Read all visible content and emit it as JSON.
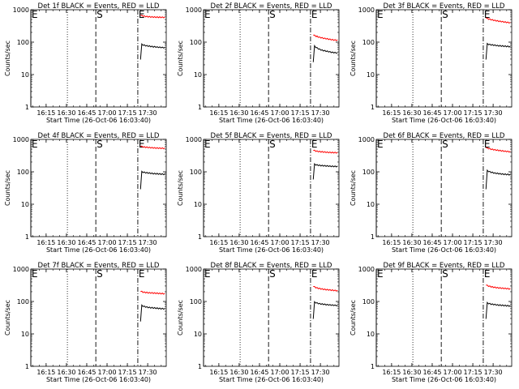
{
  "layout": {
    "rows": 3,
    "cols": 3
  },
  "colors": {
    "events": "#000000",
    "lld": "#ff0000",
    "axes": "#000000",
    "background": "#ffffff"
  },
  "chart_data": [
    {
      "type": "line",
      "title": "Det 1f BLACK = Events, RED = LLD",
      "xlabel": "Start Time (26-Oct-06 16:03:40)",
      "ylabel": "Counts/sec",
      "yscale": "log",
      "ylim": [
        1,
        1000
      ],
      "y_ticks": [
        "1",
        "10",
        "100",
        "1000"
      ],
      "xlim_minutes": [
        0,
        100
      ],
      "x_ticks": [
        {
          "label": "16:15",
          "t": 11.3
        },
        {
          "label": "16:30",
          "t": 26.3
        },
        {
          "label": "16:45",
          "t": 41.3
        },
        {
          "label": "17:00",
          "t": 56.3
        },
        {
          "label": "17:15",
          "t": 71.3
        },
        {
          "label": "17:30",
          "t": 86.3
        }
      ],
      "markers": [
        {
          "label": "E",
          "t": 0,
          "style": "solid"
        },
        {
          "label": "S",
          "t": 48,
          "style": "dash"
        },
        {
          "label": "E",
          "t": 79,
          "style": "dashdot"
        }
      ],
      "dotted_lines_t": [
        27
      ],
      "series": [
        {
          "name": "LLD",
          "color": "#ff0000",
          "t_start": 81,
          "t_end": 99,
          "values": [
            680,
            660,
            645,
            630,
            620,
            615,
            610,
            605,
            600,
            598,
            596,
            594,
            592,
            590,
            588,
            586,
            585,
            584,
            583,
            582
          ]
        },
        {
          "name": "Events",
          "color": "#000000",
          "t_start": 81,
          "t_end": 99,
          "values": [
            30,
            85,
            82,
            80,
            78,
            77,
            76,
            75,
            74,
            73,
            72,
            72,
            71,
            70,
            70,
            69,
            69,
            68,
            68,
            67
          ]
        }
      ]
    },
    {
      "type": "line",
      "title": "Det 2f BLACK = Events, RED = LLD",
      "xlabel": "Start Time (26-Oct-06 16:03:40)",
      "ylabel": "Counts/sec",
      "yscale": "log",
      "ylim": [
        1,
        1000
      ],
      "y_ticks": [
        "1",
        "10",
        "100",
        "1000"
      ],
      "xlim_minutes": [
        0,
        100
      ],
      "x_ticks": [
        {
          "label": "16:15",
          "t": 11.3
        },
        {
          "label": "16:30",
          "t": 26.3
        },
        {
          "label": "16:45",
          "t": 41.3
        },
        {
          "label": "17:00",
          "t": 56.3
        },
        {
          "label": "17:15",
          "t": 71.3
        },
        {
          "label": "17:30",
          "t": 86.3
        }
      ],
      "markers": [
        {
          "label": "E",
          "t": 0,
          "style": "solid"
        },
        {
          "label": "S",
          "t": 48,
          "style": "dash"
        },
        {
          "label": "E",
          "t": 79,
          "style": "dashdot"
        }
      ],
      "dotted_lines_t": [
        27
      ],
      "series": [
        {
          "name": "LLD",
          "color": "#ff0000",
          "t_start": 81,
          "t_end": 99,
          "values": [
            170,
            160,
            155,
            150,
            145,
            140,
            138,
            135,
            132,
            130,
            128,
            126,
            124,
            122,
            120,
            118,
            117,
            116,
            115,
            114
          ]
        },
        {
          "name": "Events",
          "color": "#000000",
          "t_start": 81,
          "t_end": 99,
          "values": [
            25,
            75,
            70,
            66,
            63,
            60,
            58,
            56,
            55,
            54,
            53,
            52,
            51,
            50,
            49,
            48,
            48,
            47,
            47,
            46
          ]
        }
      ]
    },
    {
      "type": "line",
      "title": "Det 3f BLACK = Events, RED = LLD",
      "xlabel": "Start Time (26-Oct-06 16:03:40)",
      "ylabel": "Counts/sec",
      "yscale": "log",
      "ylim": [
        1,
        1000
      ],
      "y_ticks": [
        "1",
        "10",
        "100",
        "1000"
      ],
      "xlim_minutes": [
        0,
        100
      ],
      "x_ticks": [
        {
          "label": "16:15",
          "t": 11.3
        },
        {
          "label": "16:30",
          "t": 26.3
        },
        {
          "label": "16:45",
          "t": 41.3
        },
        {
          "label": "17:00",
          "t": 56.3
        },
        {
          "label": "17:15",
          "t": 71.3
        },
        {
          "label": "17:30",
          "t": 86.3
        }
      ],
      "markers": [
        {
          "label": "E",
          "t": 0,
          "style": "solid"
        },
        {
          "label": "S",
          "t": 48,
          "style": "dash"
        },
        {
          "label": "E",
          "t": 79,
          "style": "dashdot"
        }
      ],
      "dotted_lines_t": [
        27
      ],
      "series": [
        {
          "name": "LLD",
          "color": "#ff0000",
          "t_start": 81,
          "t_end": 99,
          "values": [
            560,
            540,
            520,
            505,
            495,
            485,
            475,
            465,
            458,
            450,
            444,
            438,
            432,
            426,
            420,
            415,
            410,
            405,
            400,
            396
          ]
        },
        {
          "name": "Events",
          "color": "#000000",
          "t_start": 81,
          "t_end": 99,
          "values": [
            30,
            88,
            86,
            84,
            83,
            82,
            81,
            80,
            79,
            78,
            77,
            77,
            76,
            76,
            75,
            75,
            74,
            74,
            73,
            73
          ]
        }
      ]
    },
    {
      "type": "line",
      "title": "Det 4f BLACK = Events, RED = LLD",
      "xlabel": "Start Time (26-Oct-06 16:03:40)",
      "ylabel": "Counts/sec",
      "yscale": "log",
      "ylim": [
        1,
        1000
      ],
      "y_ticks": [
        "1",
        "10",
        "100",
        "1000"
      ],
      "xlim_minutes": [
        0,
        100
      ],
      "x_ticks": [
        {
          "label": "16:15",
          "t": 11.3
        },
        {
          "label": "16:30",
          "t": 26.3
        },
        {
          "label": "16:45",
          "t": 41.3
        },
        {
          "label": "17:00",
          "t": 56.3
        },
        {
          "label": "17:15",
          "t": 71.3
        },
        {
          "label": "17:30",
          "t": 86.3
        }
      ],
      "markers": [
        {
          "label": "E",
          "t": 0,
          "style": "solid"
        },
        {
          "label": "S",
          "t": 48,
          "style": "dash"
        },
        {
          "label": "E",
          "t": 79,
          "style": "dashdot"
        }
      ],
      "dotted_lines_t": [
        27
      ],
      "series": [
        {
          "name": "LLD",
          "color": "#ff0000",
          "t_start": 81,
          "t_end": 99,
          "values": [
            620,
            600,
            590,
            580,
            575,
            570,
            565,
            560,
            556,
            552,
            548,
            545,
            542,
            540,
            538,
            535,
            533,
            531,
            529,
            527
          ]
        },
        {
          "name": "Events",
          "color": "#000000",
          "t_start": 81,
          "t_end": 99,
          "values": [
            30,
            100,
            98,
            96,
            94,
            93,
            92,
            91,
            90,
            89,
            88,
            88,
            87,
            87,
            86,
            86,
            85,
            85,
            84,
            84
          ]
        }
      ]
    },
    {
      "type": "line",
      "title": "Det 5f BLACK = Events, RED = LLD",
      "xlabel": "Start Time (26-Oct-06 16:03:40)",
      "ylabel": "Counts/sec",
      "yscale": "log",
      "ylim": [
        1,
        1000
      ],
      "y_ticks": [
        "1",
        "10",
        "100",
        "1000"
      ],
      "xlim_minutes": [
        0,
        100
      ],
      "x_ticks": [
        {
          "label": "16:15",
          "t": 11.3
        },
        {
          "label": "16:30",
          "t": 26.3
        },
        {
          "label": "16:45",
          "t": 41.3
        },
        {
          "label": "17:00",
          "t": 56.3
        },
        {
          "label": "17:15",
          "t": 71.3
        },
        {
          "label": "17:30",
          "t": 86.3
        }
      ],
      "markers": [
        {
          "label": "E",
          "t": 0,
          "style": "solid"
        },
        {
          "label": "S",
          "t": 48,
          "style": "dash"
        },
        {
          "label": "E",
          "t": 79,
          "style": "dashdot"
        }
      ],
      "dotted_lines_t": [
        27
      ],
      "series": [
        {
          "name": "LLD",
          "color": "#ff0000",
          "t_start": 81,
          "t_end": 99,
          "values": [
            470,
            450,
            440,
            430,
            425,
            420,
            416,
            412,
            408,
            405,
            402,
            400,
            398,
            396,
            394,
            392,
            391,
            390,
            389,
            388
          ]
        },
        {
          "name": "Events",
          "color": "#000000",
          "t_start": 81,
          "t_end": 99,
          "values": [
            60,
            170,
            165,
            162,
            160,
            158,
            156,
            155,
            154,
            153,
            152,
            151,
            150,
            149,
            148,
            148,
            147,
            147,
            146,
            146
          ]
        }
      ]
    },
    {
      "type": "line",
      "title": "Det 6f BLACK = Events, RED = LLD",
      "xlabel": "Start Time (26-Oct-06 16:03:40)",
      "ylabel": "Counts/sec",
      "yscale": "log",
      "ylim": [
        1,
        1000
      ],
      "y_ticks": [
        "1",
        "10",
        "100",
        "1000"
      ],
      "xlim_minutes": [
        0,
        100
      ],
      "x_ticks": [
        {
          "label": "16:15",
          "t": 11.3
        },
        {
          "label": "16:30",
          "t": 26.3
        },
        {
          "label": "16:45",
          "t": 41.3
        },
        {
          "label": "17:00",
          "t": 56.3
        },
        {
          "label": "17:15",
          "t": 71.3
        },
        {
          "label": "17:30",
          "t": 86.3
        }
      ],
      "markers": [
        {
          "label": "E",
          "t": 0,
          "style": "solid"
        },
        {
          "label": "S",
          "t": 48,
          "style": "dash"
        },
        {
          "label": "E",
          "t": 79,
          "style": "dashdot"
        }
      ],
      "dotted_lines_t": [
        27
      ],
      "series": [
        {
          "name": "LLD",
          "color": "#ff0000",
          "t_start": 81,
          "t_end": 99,
          "values": [
            560,
            540,
            525,
            510,
            500,
            490,
            482,
            475,
            468,
            462,
            456,
            450,
            445,
            440,
            435,
            430,
            426,
            422,
            418,
            415
          ]
        },
        {
          "name": "Events",
          "color": "#000000",
          "t_start": 81,
          "t_end": 99,
          "values": [
            30,
            108,
            104,
            100,
            97,
            95,
            93,
            91,
            90,
            89,
            88,
            87,
            86,
            85,
            84,
            84,
            83,
            83,
            82,
            82
          ]
        }
      ]
    },
    {
      "type": "line",
      "title": "Det 7f BLACK = Events, RED = LLD",
      "xlabel": "Start Time (26-Oct-06 16:03:40)",
      "ylabel": "Counts/sec",
      "yscale": "log",
      "ylim": [
        1,
        1000
      ],
      "y_ticks": [
        "1",
        "10",
        "100",
        "1000"
      ],
      "xlim_minutes": [
        0,
        100
      ],
      "x_ticks": [
        {
          "label": "16:15",
          "t": 11.3
        },
        {
          "label": "16:30",
          "t": 26.3
        },
        {
          "label": "16:45",
          "t": 41.3
        },
        {
          "label": "17:00",
          "t": 56.3
        },
        {
          "label": "17:15",
          "t": 71.3
        },
        {
          "label": "17:30",
          "t": 86.3
        }
      ],
      "markers": [
        {
          "label": "E",
          "t": 0,
          "style": "solid"
        },
        {
          "label": "S",
          "t": 48,
          "style": "dash"
        },
        {
          "label": "E",
          "t": 79,
          "style": "dashdot"
        }
      ],
      "dotted_lines_t": [
        27
      ],
      "series": [
        {
          "name": "LLD",
          "color": "#ff0000",
          "t_start": 81,
          "t_end": 99,
          "values": [
            210,
            200,
            195,
            192,
            190,
            188,
            186,
            185,
            184,
            183,
            182,
            181,
            180,
            179,
            178,
            177,
            176,
            175,
            174,
            173
          ]
        },
        {
          "name": "Events",
          "color": "#000000",
          "t_start": 81,
          "t_end": 99,
          "values": [
            25,
            75,
            72,
            70,
            68,
            67,
            66,
            65,
            64,
            64,
            63,
            63,
            62,
            62,
            61,
            61,
            60,
            60,
            60,
            59
          ]
        }
      ]
    },
    {
      "type": "line",
      "title": "Det 8f BLACK = Events, RED = LLD",
      "xlabel": "Start Time (26-Oct-06 16:03:40)",
      "ylabel": "Counts/sec",
      "yscale": "log",
      "ylim": [
        1,
        1000
      ],
      "y_ticks": [
        "1",
        "10",
        "100",
        "1000"
      ],
      "xlim_minutes": [
        0,
        100
      ],
      "x_ticks": [
        {
          "label": "16:15",
          "t": 11.3
        },
        {
          "label": "16:30",
          "t": 26.3
        },
        {
          "label": "16:45",
          "t": 41.3
        },
        {
          "label": "17:00",
          "t": 56.3
        },
        {
          "label": "17:15",
          "t": 71.3
        },
        {
          "label": "17:30",
          "t": 86.3
        }
      ],
      "markers": [
        {
          "label": "E",
          "t": 0,
          "style": "solid"
        },
        {
          "label": "S",
          "t": 48,
          "style": "dash"
        },
        {
          "label": "E",
          "t": 79,
          "style": "dashdot"
        }
      ],
      "dotted_lines_t": [
        27
      ],
      "series": [
        {
          "name": "LLD",
          "color": "#ff0000",
          "t_start": 81,
          "t_end": 99,
          "values": [
            300,
            280,
            270,
            262,
            255,
            250,
            245,
            241,
            238,
            235,
            232,
            230,
            228,
            226,
            224,
            222,
            220,
            218,
            216,
            214
          ]
        },
        {
          "name": "Events",
          "color": "#000000",
          "t_start": 81,
          "t_end": 99,
          "values": [
            30,
            95,
            92,
            89,
            87,
            85,
            84,
            83,
            82,
            81,
            80,
            79,
            79,
            78,
            78,
            77,
            77,
            76,
            76,
            75
          ]
        }
      ]
    },
    {
      "type": "line",
      "title": "Det 9f BLACK = Events, RED = LLD",
      "xlabel": "Start Time (26-Oct-06 16:03:40)",
      "ylabel": "Counts/sec",
      "yscale": "log",
      "ylim": [
        1,
        1000
      ],
      "y_ticks": [
        "1",
        "10",
        "100",
        "1000"
      ],
      "xlim_minutes": [
        0,
        100
      ],
      "x_ticks": [
        {
          "label": "16:15",
          "t": 11.3
        },
        {
          "label": "16:30",
          "t": 26.3
        },
        {
          "label": "16:45",
          "t": 41.3
        },
        {
          "label": "17:00",
          "t": 56.3
        },
        {
          "label": "17:15",
          "t": 71.3
        },
        {
          "label": "17:30",
          "t": 86.3
        }
      ],
      "markers": [
        {
          "label": "E",
          "t": 0,
          "style": "solid"
        },
        {
          "label": "S",
          "t": 48,
          "style": "dash"
        },
        {
          "label": "E",
          "t": 79,
          "style": "dashdot"
        }
      ],
      "dotted_lines_t": [
        27
      ],
      "series": [
        {
          "name": "LLD",
          "color": "#ff0000",
          "t_start": 81,
          "t_end": 99,
          "values": [
            330,
            310,
            300,
            292,
            286,
            280,
            276,
            272,
            268,
            265,
            262,
            260,
            258,
            256,
            254,
            252,
            250,
            248,
            246,
            244
          ]
        },
        {
          "name": "Events",
          "color": "#000000",
          "t_start": 81,
          "t_end": 99,
          "values": [
            30,
            90,
            87,
            85,
            83,
            82,
            81,
            80,
            79,
            78,
            77,
            77,
            76,
            76,
            75,
            75,
            74,
            74,
            73,
            73
          ]
        }
      ]
    }
  ]
}
